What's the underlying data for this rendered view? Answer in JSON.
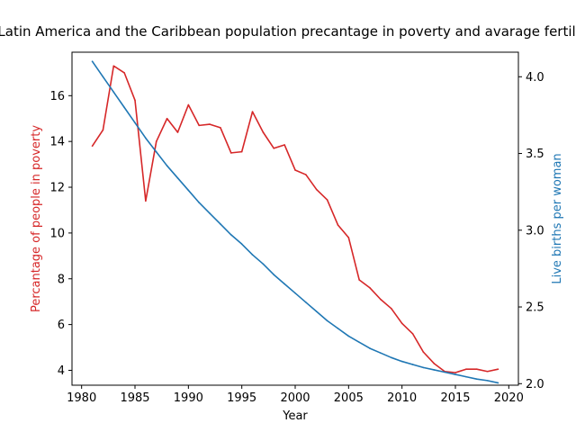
{
  "chart_data": {
    "type": "line",
    "title": "Latin America and the Caribbean population precantage in poverty and avarage fertility",
    "xlabel": "Year",
    "ylabel_left": "Percantage of people in poverty",
    "ylabel_right": "Live births per woman",
    "xlim": [
      1979.1,
      2020.9
    ],
    "ylim_left": [
      3.35,
      17.9
    ],
    "ylim_right": [
      1.99,
      4.16
    ],
    "x_ticks": [
      1980,
      1985,
      1990,
      1995,
      2000,
      2005,
      2010,
      2015,
      2020
    ],
    "y_ticks_left": [
      4,
      6,
      8,
      10,
      12,
      14,
      16
    ],
    "y_ticks_right": [
      2.0,
      2.5,
      3.0,
      3.5,
      4.0
    ],
    "x_tick_labels": [
      "1980",
      "1985",
      "1990",
      "1995",
      "2000",
      "2005",
      "2010",
      "2015",
      "2020"
    ],
    "y_tick_labels_left": [
      "4",
      "6",
      "8",
      "10",
      "12",
      "14",
      "16"
    ],
    "y_tick_labels_right": [
      "2.0",
      "2.5",
      "3.0",
      "3.5",
      "4.0"
    ],
    "grid": false,
    "legend": "none",
    "x": [
      1981,
      1982,
      1983,
      1984,
      1985,
      1986,
      1987,
      1988,
      1989,
      1990,
      1991,
      1992,
      1993,
      1994,
      1995,
      1996,
      1997,
      1998,
      1999,
      2000,
      2001,
      2002,
      2003,
      2004,
      2005,
      2006,
      2007,
      2008,
      2009,
      2010,
      2011,
      2012,
      2013,
      2014,
      2015,
      2016,
      2017,
      2018,
      2019
    ],
    "series": [
      {
        "axis": "left",
        "color": "#d62728",
        "values": [
          13.8,
          14.5,
          17.3,
          17.0,
          15.8,
          11.4,
          14.0,
          15.0,
          14.4,
          15.6,
          14.7,
          14.75,
          14.6,
          13.5,
          13.55,
          15.3,
          14.4,
          13.7,
          13.85,
          12.75,
          12.55,
          11.9,
          11.45,
          10.35,
          9.8,
          7.95,
          7.6,
          7.1,
          6.7,
          6.05,
          5.6,
          4.8,
          4.3,
          3.95,
          3.9,
          4.05,
          4.05,
          3.95,
          4.05
        ]
      },
      {
        "axis": "right",
        "color": "#1f77b4",
        "values": [
          4.1,
          4.0,
          3.9,
          3.8,
          3.7,
          3.6,
          3.51,
          3.42,
          3.34,
          3.26,
          3.18,
          3.11,
          3.04,
          2.97,
          2.91,
          2.84,
          2.78,
          2.71,
          2.65,
          2.59,
          2.53,
          2.47,
          2.41,
          2.36,
          2.31,
          2.27,
          2.23,
          2.2,
          2.17,
          2.145,
          2.125,
          2.105,
          2.09,
          2.075,
          2.06,
          2.045,
          2.03,
          2.02,
          2.005
        ]
      }
    ]
  }
}
